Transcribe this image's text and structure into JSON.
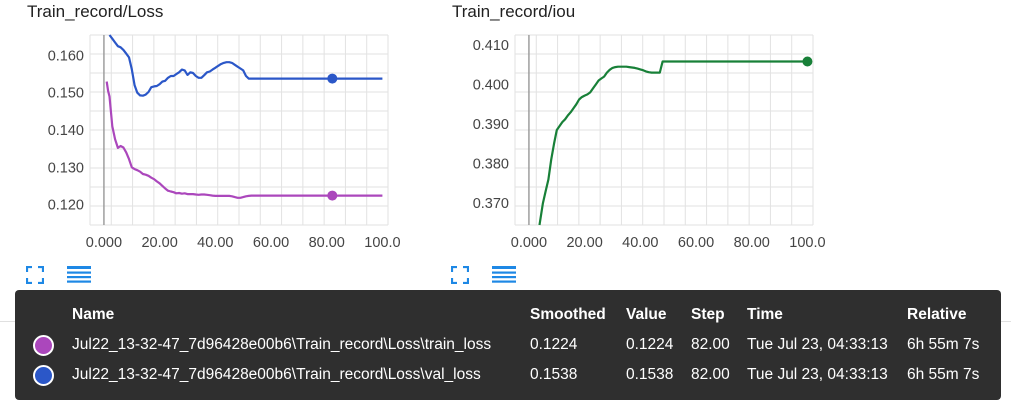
{
  "charts": [
    {
      "title": "Train_record/Loss",
      "chart_data": {
        "type": "line",
        "title": "Train_record/Loss",
        "xlabel": "",
        "ylabel": "",
        "xlim": [
          -5,
          102
        ],
        "ylim": [
          0.1145,
          0.1655
        ],
        "x_ticks": [
          0,
          20,
          40,
          60,
          80,
          100
        ],
        "x_tick_labels": [
          "0.000",
          "20.00",
          "40.00",
          "60.00",
          "80.00",
          "100.0"
        ],
        "y_ticks": [
          0.12,
          0.13,
          0.14,
          0.15,
          0.16
        ],
        "y_tick_labels": [
          "0.120",
          "0.130",
          "0.140",
          "0.150",
          "0.160"
        ],
        "grid": true,
        "series": [
          {
            "name": "val_loss",
            "color": "#2b57c8",
            "x": [
              2,
              3,
              4,
              5,
              6,
              7,
              8,
              9,
              10,
              11,
              12,
              13,
              14,
              15,
              16,
              17,
              18,
              19,
              20,
              21,
              22,
              23,
              24,
              25,
              26,
              27,
              28,
              29,
              30,
              31,
              32,
              33,
              34,
              35,
              36,
              37,
              38,
              39,
              40,
              41,
              42,
              43,
              44,
              45,
              46,
              47,
              48,
              49,
              50,
              51,
              52,
              53,
              54,
              55,
              56,
              57,
              58,
              59,
              60,
              61,
              62,
              63,
              64,
              65,
              66,
              67,
              68,
              69,
              70,
              71,
              72,
              73,
              74,
              75,
              76,
              77,
              78,
              79,
              80,
              81,
              82,
              83,
              84,
              85,
              86,
              87,
              88,
              89,
              90,
              91,
              92,
              93,
              94,
              95,
              96,
              97,
              98,
              99,
              100
            ],
            "y": [
              0.1655,
              0.1645,
              0.1635,
              0.1625,
              0.1622,
              0.1615,
              0.1605,
              0.1595,
              0.1563,
              0.152,
              0.15,
              0.1493,
              0.1492,
              0.1495,
              0.1502,
              0.1515,
              0.1517,
              0.1518,
              0.1523,
              0.153,
              0.1532,
              0.154,
              0.1545,
              0.1545,
              0.155,
              0.1555,
              0.1562,
              0.156,
              0.1548,
              0.1555,
              0.1553,
              0.1545,
              0.154,
              0.154,
              0.1547,
              0.1555,
              0.1557,
              0.1562,
              0.1567,
              0.1572,
              0.1577,
              0.158,
              0.1582,
              0.1582,
              0.158,
              0.1575,
              0.157,
              0.1565,
              0.156,
              0.1545,
              0.1538,
              0.1538,
              0.1538,
              0.1538,
              0.1538,
              0.1538,
              0.1538,
              0.1538,
              0.1538,
              0.1538,
              0.1538,
              0.1538,
              0.1538,
              0.1538,
              0.1538,
              0.1538,
              0.1538,
              0.1538,
              0.1538,
              0.1538,
              0.1538,
              0.1538,
              0.1538,
              0.1538,
              0.1538,
              0.1538,
              0.1538,
              0.1538,
              0.1538,
              0.1538,
              0.1538,
              0.1538,
              0.1538,
              0.1538,
              0.1538,
              0.1538,
              0.1538,
              0.1538,
              0.1538,
              0.1538,
              0.1538,
              0.1538,
              0.1538,
              0.1538,
              0.1538,
              0.1538,
              0.1538,
              0.1538,
              0.1538
            ],
            "marker_x": 82,
            "marker_y": 0.1538
          },
          {
            "name": "train_loss",
            "color": "#ab47bc",
            "x": [
              1,
              1.5,
              2,
              3,
              4,
              5,
              6,
              7,
              8,
              9,
              10,
              11,
              12,
              13,
              14,
              15,
              16,
              17,
              18,
              19,
              20,
              21,
              22,
              23,
              24,
              25,
              26,
              27,
              28,
              29,
              30,
              31,
              32,
              33,
              34,
              35,
              36,
              37,
              38,
              39,
              40,
              41,
              42,
              43,
              44,
              45,
              46,
              47,
              48,
              49,
              50,
              51,
              52,
              53,
              54,
              55,
              56,
              57,
              58,
              59,
              60,
              65,
              70,
              75,
              80,
              85,
              90,
              95,
              100
            ],
            "y": [
              0.153,
              0.1505,
              0.149,
              0.141,
              0.1375,
              0.1352,
              0.1357,
              0.1353,
              0.134,
              0.1322,
              0.13,
              0.1295,
              0.1292,
              0.1288,
              0.1282,
              0.128,
              0.1277,
              0.1272,
              0.1268,
              0.1262,
              0.1257,
              0.125,
              0.1243,
              0.1237,
              0.1235,
              0.1233,
              0.123,
              0.1231,
              0.1229,
              0.123,
              0.1228,
              0.1228,
              0.1228,
              0.1227,
              0.1226,
              0.1227,
              0.1227,
              0.1226,
              0.1225,
              0.1224,
              0.1223,
              0.1223,
              0.1223,
              0.1223,
              0.1223,
              0.1223,
              0.1222,
              0.122,
              0.1218,
              0.1218,
              0.122,
              0.1222,
              0.1223,
              0.1224,
              0.1224,
              0.1224,
              0.1224,
              0.1224,
              0.1224,
              0.1224,
              0.1224,
              0.1224,
              0.1224,
              0.1224,
              0.1224,
              0.1224,
              0.1224,
              0.1224,
              0.1224
            ],
            "marker_x": 82,
            "marker_y": 0.1224
          }
        ]
      }
    },
    {
      "title": "Train_record/iou",
      "chart_data": {
        "type": "line",
        "title": "Train_record/iou",
        "xlabel": "",
        "ylabel": "",
        "xlim": [
          -5,
          102
        ],
        "ylim": [
          0.3645,
          0.4125
        ],
        "x_ticks": [
          0,
          20,
          40,
          60,
          80,
          100
        ],
        "x_tick_labels": [
          "0.000",
          "20.00",
          "40.00",
          "60.00",
          "80.00",
          "100.0"
        ],
        "y_ticks": [
          0.37,
          0.38,
          0.39,
          0.4,
          0.41
        ],
        "y_tick_labels": [
          "0.370",
          "0.380",
          "0.390",
          "0.400",
          "0.410"
        ],
        "grid": true,
        "series": [
          {
            "name": "iou",
            "color": "#188038",
            "x": [
              3.8,
              5,
              6,
              7,
              8,
              9,
              10,
              11,
              12,
              13,
              14,
              15,
              16,
              17,
              18,
              19,
              20,
              21,
              22,
              23,
              24,
              25,
              26,
              27,
              28,
              29,
              30,
              31,
              32,
              33,
              34,
              35,
              36,
              37,
              38,
              39,
              40,
              41,
              42,
              43,
              44,
              45,
              46,
              47,
              48,
              49,
              50,
              51,
              52,
              53,
              54,
              55,
              60,
              65,
              70,
              75,
              80,
              85,
              90,
              95,
              100
            ],
            "y": [
              0.3645,
              0.37,
              0.373,
              0.376,
              0.381,
              0.385,
              0.3885,
              0.3895,
              0.3905,
              0.3912,
              0.3922,
              0.393,
              0.394,
              0.395,
              0.3962,
              0.3968,
              0.3972,
              0.3975,
              0.398,
              0.399,
              0.4,
              0.401,
              0.4015,
              0.402,
              0.403,
              0.4037,
              0.4042,
              0.4044,
              0.4045,
              0.4045,
              0.4045,
              0.4045,
              0.4044,
              0.4043,
              0.4042,
              0.404,
              0.4038,
              0.4036,
              0.4033,
              0.4031,
              0.403,
              0.403,
              0.403,
              0.403,
              0.4058,
              0.4058,
              0.4058,
              0.4058,
              0.4058,
              0.4058,
              0.4058,
              0.4058,
              0.4058,
              0.4058,
              0.4058,
              0.4058,
              0.4058,
              0.4058,
              0.4058,
              0.4058,
              0.4058
            ],
            "marker_x": 100,
            "marker_y": 0.4058
          }
        ]
      }
    }
  ],
  "tooltip": {
    "headers": {
      "name": "Name",
      "smoothed": "Smoothed",
      "value": "Value",
      "step": "Step",
      "time": "Time",
      "relative": "Relative"
    },
    "rows": [
      {
        "color": "#ab47bc",
        "name": "Jul22_13-32-47_7d96428e00b6\\Train_record\\Loss\\train_loss",
        "smoothed": "0.1224",
        "value": "0.1224",
        "step": "82.00",
        "time": "Tue Jul 23, 04:33:13",
        "relative": "6h 55m 7s"
      },
      {
        "color": "#2b57c8",
        "name": "Jul22_13-32-47_7d96428e00b6\\Train_record\\Loss\\val_loss",
        "smoothed": "0.1538",
        "value": "0.1538",
        "step": "82.00",
        "time": "Tue Jul 23, 04:33:13",
        "relative": "6h 55m 7s"
      }
    ]
  },
  "icons": [
    "fullscreen-icon",
    "data-table-icon"
  ]
}
